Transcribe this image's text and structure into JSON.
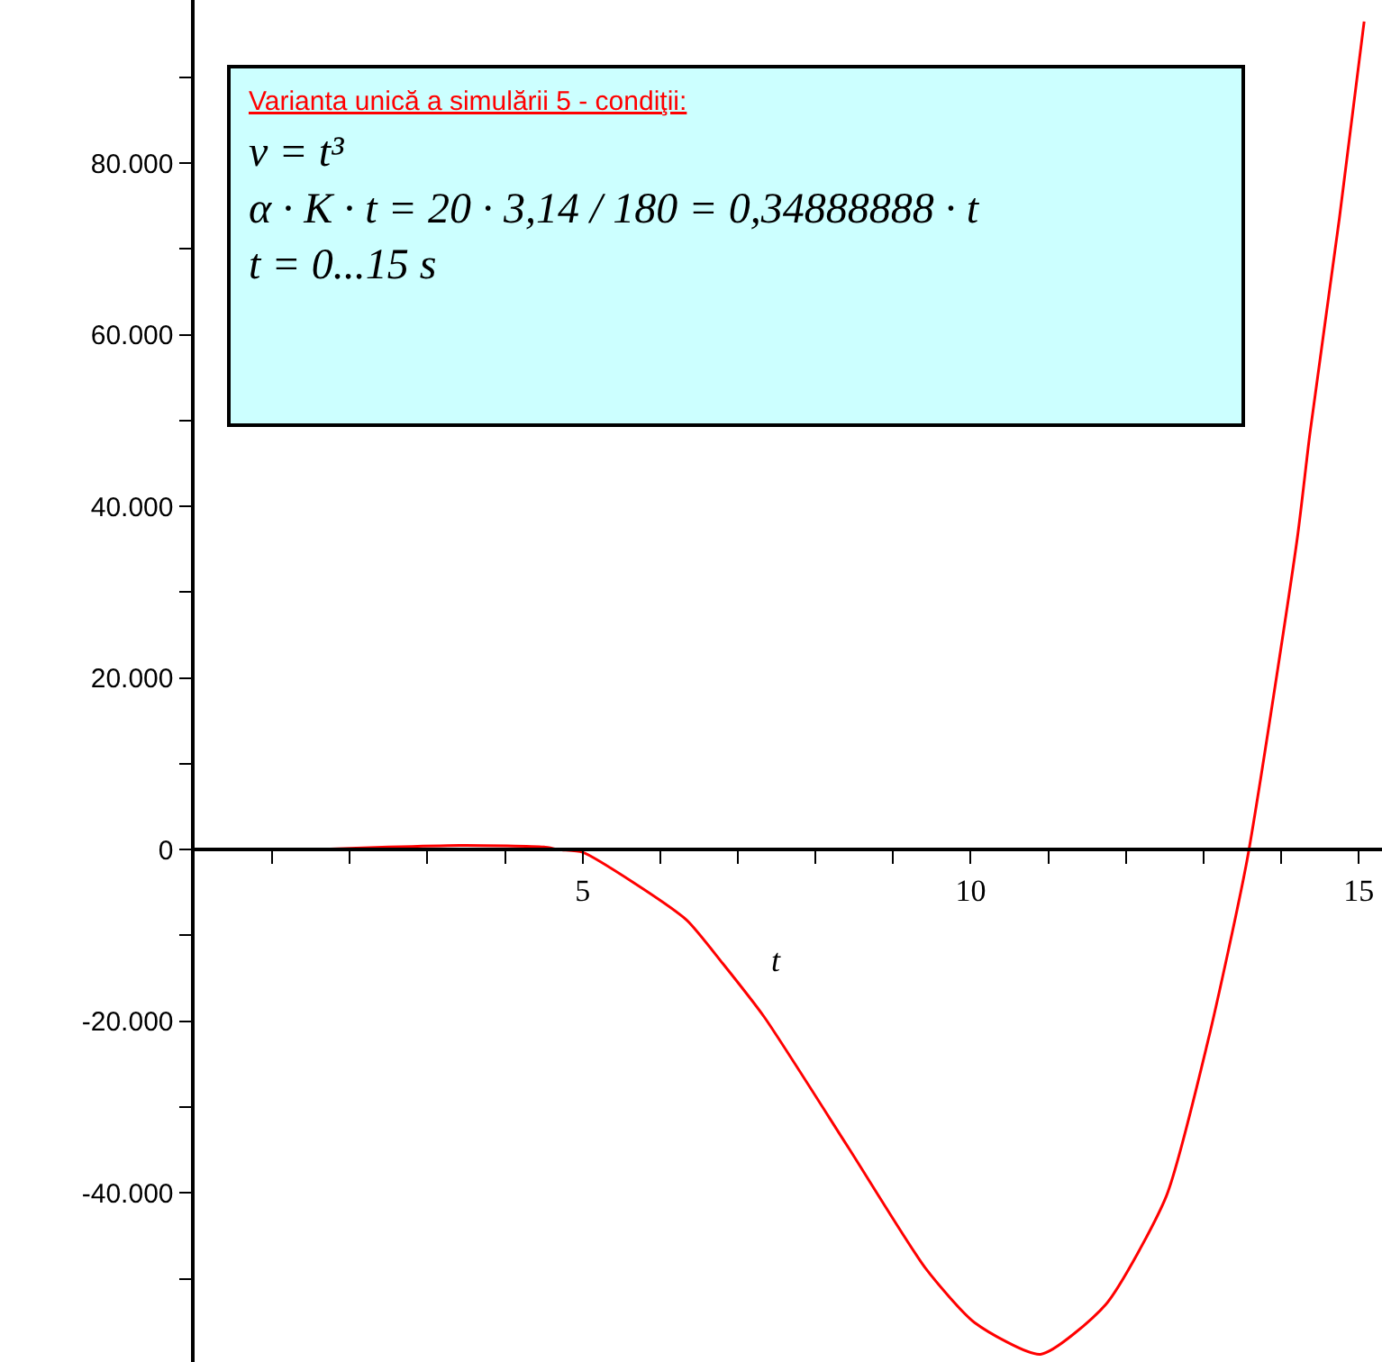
{
  "chart_data": {
    "type": "line",
    "title": "Varianta unică a simulării 5 - condiţii:",
    "annotations": [
      "v = t³",
      "α · K · t = 20 · 3,14 / 180 = 0,34888888 · t",
      "t = 0...15 s"
    ],
    "xlabel": "t",
    "series": [
      {
        "color": "#ff0000",
        "x": [
          1.5,
          2.5,
          3.5,
          4.5,
          4.7,
          5.0,
          5.65,
          6.34,
          6.8,
          7.34,
          8.43,
          9.42,
          10.05,
          10.9,
          11.74,
          12.52,
          13.06,
          13.56,
          14.21,
          14.37,
          14.75,
          15.07
        ],
        "values": [
          0,
          300,
          500,
          300,
          0,
          -300,
          -3800,
          -8200,
          -13200,
          -19500,
          -34800,
          -48800,
          -55100,
          -58800,
          -53000,
          -40400,
          -22200,
          -1300,
          36400,
          48400,
          73500,
          96500
        ]
      }
    ],
    "xlim": [
      0,
      15.3
    ],
    "ylim": [
      -59700,
      99000
    ],
    "xticks": [
      {
        "value": 1,
        "label": null
      },
      {
        "value": 2,
        "label": null
      },
      {
        "value": 3,
        "label": null
      },
      {
        "value": 4,
        "label": null
      },
      5,
      {
        "value": 6,
        "label": null
      },
      {
        "value": 7,
        "label": null
      },
      {
        "value": 8,
        "label": null
      },
      {
        "value": 9,
        "label": null
      },
      10,
      {
        "value": 11,
        "label": null
      },
      {
        "value": 12,
        "label": null
      },
      {
        "value": 13,
        "label": null
      },
      {
        "value": 14,
        "label": null
      },
      15
    ],
    "yticks": [
      {
        "value": -50000,
        "label": null
      },
      {
        "value": -40000,
        "label": "-40.000"
      },
      {
        "value": -30000,
        "label": null
      },
      {
        "value": -20000,
        "label": "-20.000"
      },
      {
        "value": -10000,
        "label": null
      },
      0,
      {
        "value": 10000,
        "label": null
      },
      {
        "value": 20000,
        "label": "20.000"
      },
      {
        "value": 30000,
        "label": null
      },
      {
        "value": 40000,
        "label": "40.000"
      },
      {
        "value": 50000,
        "label": null
      },
      {
        "value": 60000,
        "label": "60.000"
      },
      {
        "value": 70000,
        "label": null
      },
      {
        "value": 80000,
        "label": "80.000"
      },
      {
        "value": 90000,
        "label": null
      }
    ],
    "grid": false,
    "marker": "none",
    "line_style": "solid"
  }
}
